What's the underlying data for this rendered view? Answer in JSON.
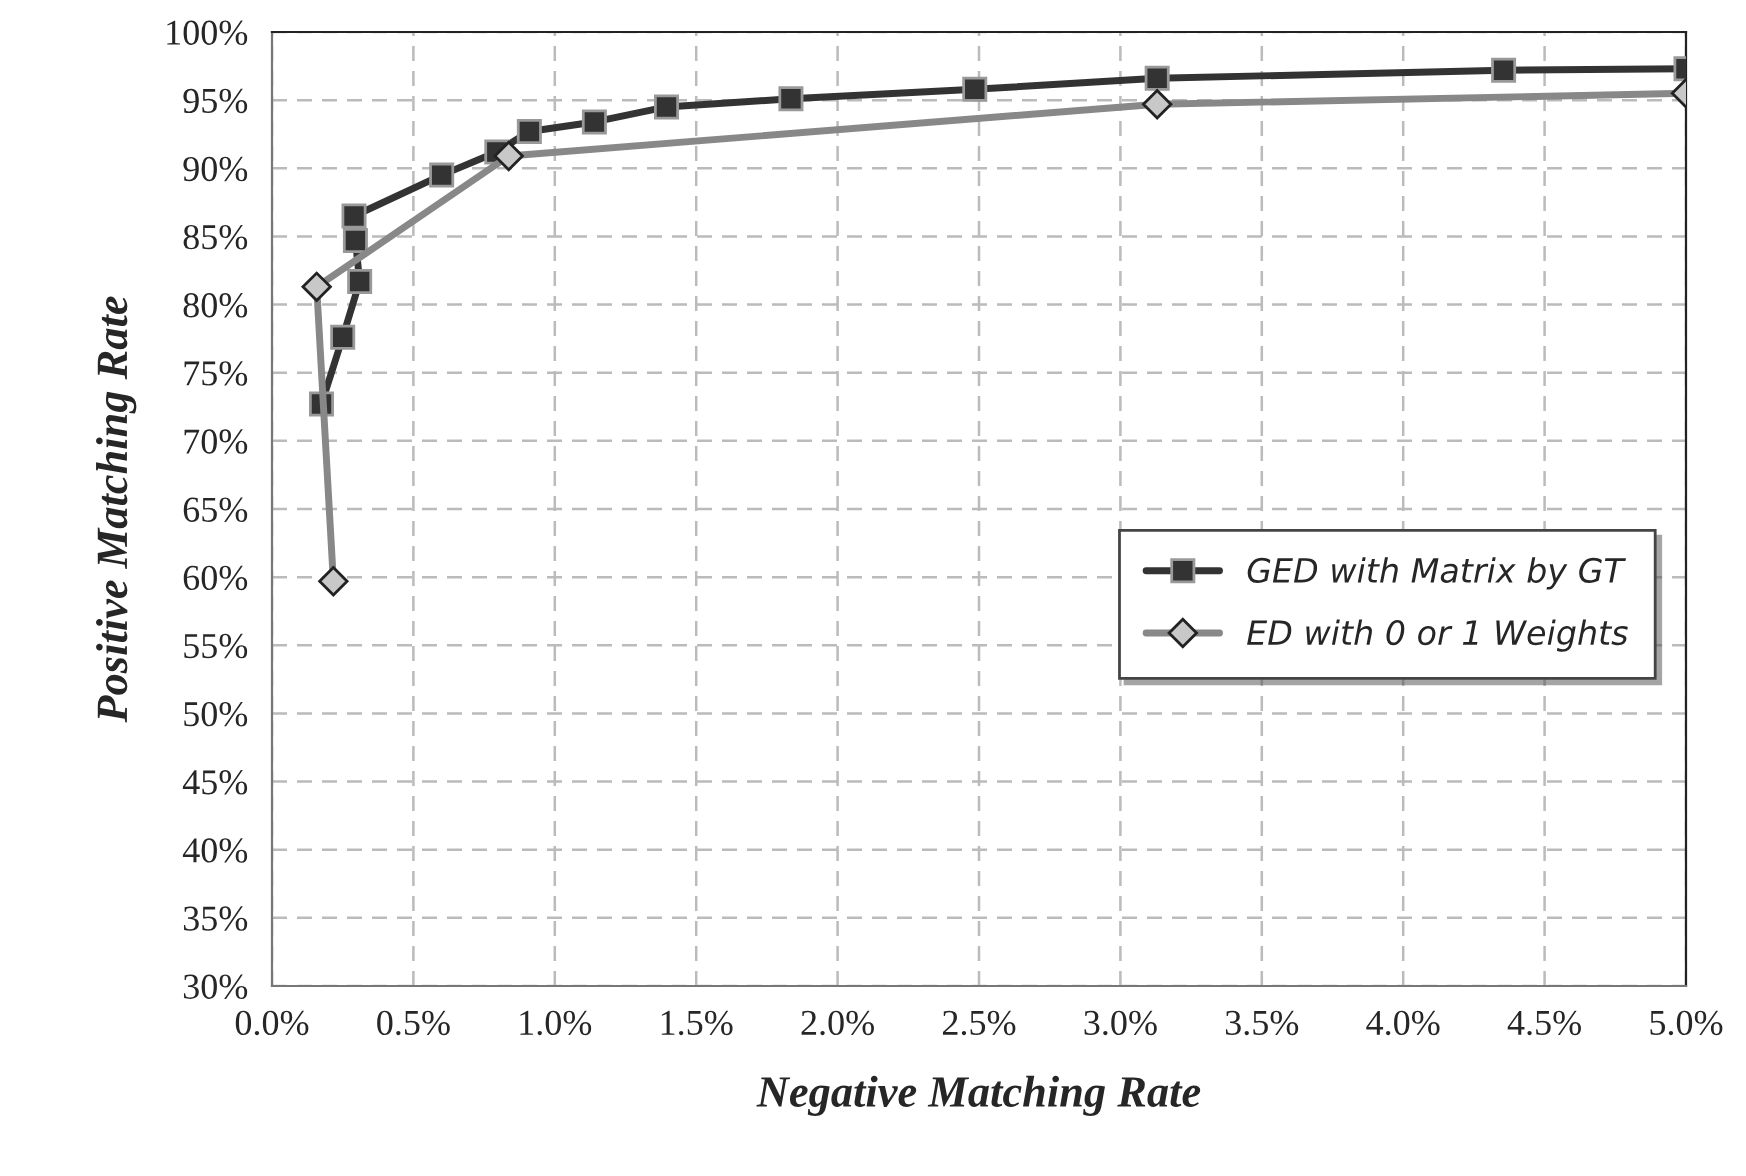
{
  "chart_data": {
    "type": "line",
    "xlabel": "Negative Matching Rate",
    "ylabel": "Positive Matching Rate",
    "series": [
      {
        "name": "GED with Matrix by GT",
        "color": "#333333",
        "marker": "square",
        "x": [
          0.175,
          0.25,
          0.31,
          0.295,
          0.29,
          0.6,
          0.795,
          0.91,
          1.14,
          1.395,
          1.835,
          2.485,
          3.13,
          4.355,
          5.0
        ],
        "values": [
          72.7,
          77.6,
          81.7,
          84.7,
          86.5,
          89.5,
          91.2,
          92.7,
          93.4,
          94.5,
          95.1,
          95.8,
          96.6,
          97.2,
          97.3
        ]
      },
      {
        "name": "ED with 0 or 1 Weights",
        "color": "#888888",
        "marker": "diamond",
        "x": [
          0.217,
          0.158,
          0.837,
          3.13,
          5.0
        ],
        "values": [
          59.7,
          81.3,
          90.9,
          94.7,
          95.5
        ]
      }
    ],
    "xlim": [
      0,
      5
    ],
    "ylim": [
      30,
      100
    ],
    "xticks": [
      {
        "value": 0,
        "label": "0.0%"
      },
      {
        "value": 0.5,
        "label": "0.5%"
      },
      {
        "value": 1,
        "label": "1.0%"
      },
      {
        "value": 1.5,
        "label": "1.5%"
      },
      {
        "value": 2,
        "label": "2.0%"
      },
      {
        "value": 2.5,
        "label": "2.5%"
      },
      {
        "value": 3,
        "label": "3.0%"
      },
      {
        "value": 3.5,
        "label": "3.5%"
      },
      {
        "value": 4,
        "label": "4.0%"
      },
      {
        "value": 4.5,
        "label": "4.5%"
      },
      {
        "value": 5,
        "label": "5.0%"
      }
    ],
    "yticks": [
      {
        "value": 30,
        "label": "30%"
      },
      {
        "value": 35,
        "label": "35%"
      },
      {
        "value": 40,
        "label": "40%"
      },
      {
        "value": 45,
        "label": "45%"
      },
      {
        "value": 50,
        "label": "50%"
      },
      {
        "value": 55,
        "label": "55%"
      },
      {
        "value": 60,
        "label": "60%"
      },
      {
        "value": 65,
        "label": "65%"
      },
      {
        "value": 70,
        "label": "70%"
      },
      {
        "value": 75,
        "label": "75%"
      },
      {
        "value": 80,
        "label": "80%"
      },
      {
        "value": 85,
        "label": "85%"
      },
      {
        "value": 90,
        "label": "90%"
      },
      {
        "value": 95,
        "label": "95%"
      },
      {
        "value": 100,
        "label": "100%"
      }
    ],
    "grid": true,
    "legend": "right",
    "line_style": "solid"
  }
}
